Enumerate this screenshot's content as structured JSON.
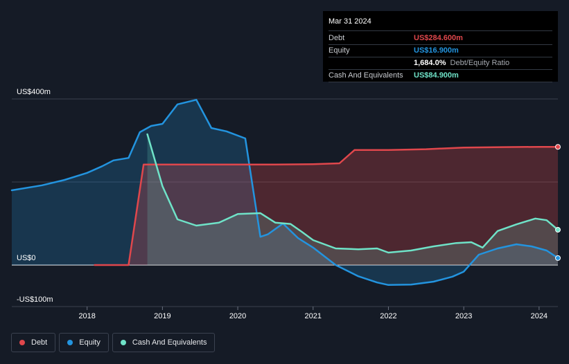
{
  "tooltip": {
    "date": "Mar 31 2024",
    "rows": [
      {
        "label": "Debt",
        "value": "US$284.600m",
        "color": "#e0474c"
      },
      {
        "label": "Equity",
        "value": "US$16.900m",
        "color": "#2394df"
      },
      {
        "label": "",
        "value": "1,684.0%",
        "sub": "Debt/Equity Ratio",
        "color": "#ffffff"
      },
      {
        "label": "Cash And Equivalents",
        "value": "US$84.900m",
        "color": "#6fe3c8"
      }
    ]
  },
  "legend": [
    {
      "name": "Debt",
      "color": "#e0474c"
    },
    {
      "name": "Equity",
      "color": "#2394df"
    },
    {
      "name": "Cash And Equivalents",
      "color": "#6fe3c8"
    }
  ],
  "chart_data": {
    "type": "area",
    "title": "",
    "xlabel": "",
    "ylabel": "",
    "ylim": [
      -100,
      400
    ],
    "xlim": [
      2017.0,
      2024.25
    ],
    "x_ticks": [
      2018,
      2019,
      2020,
      2021,
      2022,
      2023,
      2024
    ],
    "x_tick_labels": [
      "2018",
      "2019",
      "2020",
      "2021",
      "2022",
      "2023",
      "2024"
    ],
    "y_tick_labels": [
      {
        "value": 400,
        "label": "US$400m"
      },
      {
        "value": 0,
        "label": "US$0"
      },
      {
        "value": -100,
        "label": "-US$100m"
      }
    ],
    "series": [
      {
        "name": "Equity",
        "color": "#2394df",
        "points": [
          [
            2017.0,
            180
          ],
          [
            2017.4,
            192
          ],
          [
            2017.7,
            205
          ],
          [
            2018.0,
            222
          ],
          [
            2018.2,
            238
          ],
          [
            2018.35,
            252
          ],
          [
            2018.55,
            258
          ],
          [
            2018.7,
            320
          ],
          [
            2018.85,
            335
          ],
          [
            2019.0,
            340
          ],
          [
            2019.2,
            387
          ],
          [
            2019.45,
            398
          ],
          [
            2019.65,
            330
          ],
          [
            2019.85,
            322
          ],
          [
            2020.1,
            305
          ],
          [
            2020.3,
            68
          ],
          [
            2020.4,
            74
          ],
          [
            2020.6,
            100
          ],
          [
            2020.8,
            65
          ],
          [
            2021.0,
            42
          ],
          [
            2021.3,
            0
          ],
          [
            2021.6,
            -27
          ],
          [
            2021.85,
            -42
          ],
          [
            2022.0,
            -48
          ],
          [
            2022.3,
            -47
          ],
          [
            2022.6,
            -40
          ],
          [
            2022.85,
            -28
          ],
          [
            2023.0,
            -16
          ],
          [
            2023.2,
            25
          ],
          [
            2023.45,
            40
          ],
          [
            2023.7,
            50
          ],
          [
            2023.9,
            45
          ],
          [
            2024.1,
            35
          ],
          [
            2024.25,
            17
          ]
        ]
      },
      {
        "name": "Debt",
        "color": "#e0474c",
        "points": [
          [
            2018.1,
            0
          ],
          [
            2018.55,
            0
          ],
          [
            2018.75,
            242
          ],
          [
            2019.2,
            242
          ],
          [
            2019.8,
            242
          ],
          [
            2020.5,
            242
          ],
          [
            2021.0,
            243
          ],
          [
            2021.35,
            245
          ],
          [
            2021.55,
            277
          ],
          [
            2022.0,
            277
          ],
          [
            2022.5,
            279
          ],
          [
            2023.0,
            283
          ],
          [
            2023.5,
            284
          ],
          [
            2024.0,
            284.6
          ],
          [
            2024.25,
            284.6
          ]
        ]
      },
      {
        "name": "Cash And Equivalents",
        "color": "#6fe3c8",
        "points": [
          [
            2018.8,
            315
          ],
          [
            2019.0,
            190
          ],
          [
            2019.2,
            110
          ],
          [
            2019.45,
            95
          ],
          [
            2019.75,
            102
          ],
          [
            2020.0,
            123
          ],
          [
            2020.3,
            125
          ],
          [
            2020.5,
            102
          ],
          [
            2020.7,
            99
          ],
          [
            2020.85,
            80
          ],
          [
            2021.0,
            60
          ],
          [
            2021.3,
            40
          ],
          [
            2021.6,
            38
          ],
          [
            2021.85,
            40
          ],
          [
            2022.0,
            30
          ],
          [
            2022.3,
            35
          ],
          [
            2022.6,
            45
          ],
          [
            2022.9,
            53
          ],
          [
            2023.1,
            55
          ],
          [
            2023.25,
            42
          ],
          [
            2023.45,
            82
          ],
          [
            2023.7,
            98
          ],
          [
            2023.95,
            112
          ],
          [
            2024.1,
            108
          ],
          [
            2024.25,
            84.9
          ]
        ]
      }
    ],
    "end_markers": [
      {
        "series": "Debt",
        "value": 284.6
      },
      {
        "series": "Equity",
        "value": 16.9
      },
      {
        "series": "Cash And Equivalents",
        "value": 84.9
      }
    ]
  }
}
